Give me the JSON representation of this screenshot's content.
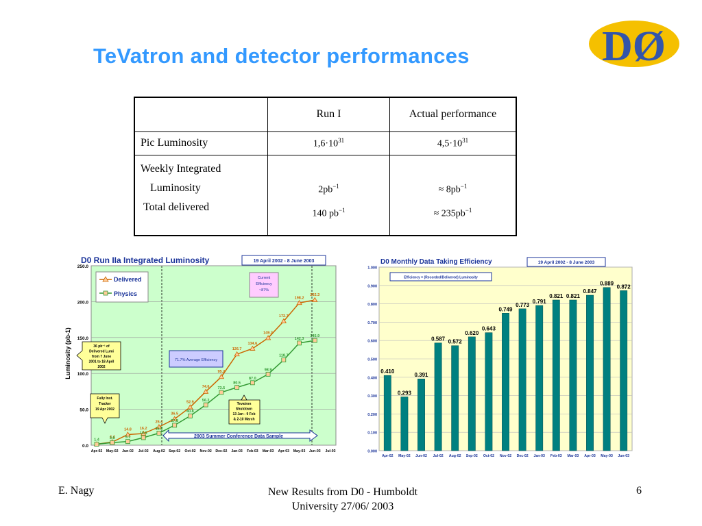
{
  "slide": {
    "title": "TeVatron and detector performances",
    "logo_text": "DØ"
  },
  "table": {
    "headers": [
      "",
      "Run I",
      "Actual performance"
    ],
    "rows": [
      {
        "label": "Pic Luminosity",
        "run1": "1,6·10",
        "run1_exp": "31",
        "actual": "4,5·10",
        "actual_exp": "31"
      }
    ],
    "weekly_label": "Weekly Integrated",
    "luminosity_label": "Luminosity",
    "total_label": "Total delivered",
    "weekly_run1": "2pb",
    "weekly_run1_exp": "−1",
    "weekly_actual": "≈ 8pb",
    "weekly_actual_exp": "−1",
    "total_run1": "140 pb",
    "total_run1_exp": "−1",
    "total_actual": "≈ 235pb",
    "total_actual_exp": "−1"
  },
  "lum_chart": {
    "title": "D0 Run IIa Integrated Luminosity",
    "date_range": "19 April 2002 - 8 June 2003",
    "legend_delivered": "Delivered",
    "legend_physics": "Physics",
    "current_eff_1": "Current",
    "current_eff_2": "Efficiency",
    "current_eff_3": "~87%",
    "avg_eff": "71.7% Average Efficiency",
    "note1": [
      "36 pb⁻¹ of",
      "Delivered Lumi",
      "from 7 June",
      "2001 to 18 April",
      "2002"
    ],
    "note2": [
      "Fully Inst.",
      "Tracker",
      "19 Apr 2002"
    ],
    "note3": [
      "Tevatron",
      "Shutdown",
      "13 Jan - 9 Feb",
      "& 2-10 March"
    ],
    "arrow_label": "2003 Summer Conference Data Sample",
    "colors": {
      "plot_bg": "#ccffcc",
      "delivered": "#cc6600",
      "physics": "#339933",
      "marker_fill": "#ffcc99"
    }
  },
  "eff_chart": {
    "title": "D0 Monthly Data Taking Efficiency",
    "date_range": "19 April 2002 - 8 June 2003",
    "formula": "Efficiency = (Recorded/Delivered) Luminosity",
    "colors": {
      "bar": "#008080",
      "plot_bg": "#ffffcc"
    }
  },
  "chart_data": [
    {
      "type": "line",
      "title": "D0 Run IIa Integrated Luminosity",
      "xlabel": "",
      "ylabel": "Luminosity (pb-1)",
      "ylim": [
        0,
        250
      ],
      "yticks": [
        "0.0",
        "50.0",
        "100.0",
        "150.0",
        "200.0",
        "250.0"
      ],
      "categories": [
        "Apr-02",
        "May-02",
        "Jun-02",
        "Jul-02",
        "Aug-02",
        "Sep-02",
        "Oct-02",
        "Nov-02",
        "Dec-02",
        "Jan-03",
        "Feb-03",
        "Mar-03",
        "Apr-03",
        "May-03",
        "Jun-03",
        "Jul-03"
      ],
      "series": [
        {
          "name": "Delivered",
          "x": [
            0,
            1,
            2,
            3,
            4,
            5,
            6,
            7,
            8,
            9,
            10,
            11,
            12,
            13,
            14
          ],
          "values": [
            1.4,
            4.4,
            14.8,
            16.2,
            25.4,
            36.5,
            52.9,
            74.6,
            95.2,
            126.7,
            134.6,
            149.3,
            172.7,
            198.2,
            202.3
          ]
        },
        {
          "name": "Physics",
          "x": [
            0,
            1,
            2,
            3,
            4,
            5,
            6,
            7,
            8,
            9,
            10,
            11,
            12,
            13,
            14
          ],
          "values": [
            1.4,
            3.6,
            5.1,
            10.5,
            16.8,
            27.8,
            40.8,
            56.2,
            73.5,
            80.5,
            87.0,
            98.9,
            118.7,
            142.3,
            145.9
          ]
        }
      ],
      "point_labels": {
        "Delivered": [
          "",
          "4.4",
          "14.8",
          "16.2",
          "25.4",
          "36.5",
          "52.9",
          "74.6",
          "95.2",
          "126.7",
          "134.6",
          "149.3",
          "172.7",
          "198.2",
          "202.3"
        ],
        "Physics": [
          "1.4",
          "3.6",
          "5.1",
          "10.5",
          "16.8",
          "27.8",
          "40.8",
          "56.2",
          "73.5",
          "80.5",
          "87.0",
          "98.9",
          "118.7",
          "142.3",
          "145.9"
        ]
      }
    },
    {
      "type": "bar",
      "title": "D0 Monthly Data Taking Efficiency",
      "xlabel": "",
      "ylabel": "",
      "ylim": [
        0,
        1.0
      ],
      "yticks": [
        "0.000",
        "0.100",
        "0.200",
        "0.300",
        "0.400",
        "0.500",
        "0.600",
        "0.700",
        "0.800",
        "0.900",
        "1.000"
      ],
      "categories": [
        "Apr-02",
        "May-02",
        "Jun-02",
        "Jul-02",
        "Aug-02",
        "Sep-02",
        "Oct-02",
        "Nov-02",
        "Dec-02",
        "Jan-03",
        "Feb-03",
        "Mar-03",
        "Apr-03",
        "May-03",
        "Jun-03"
      ],
      "values": [
        0.41,
        0.293,
        0.391,
        0.587,
        0.572,
        0.62,
        0.643,
        0.749,
        0.773,
        0.791,
        0.821,
        0.821,
        0.847,
        0.889,
        0.872
      ],
      "labels": [
        "0.410",
        "0.293",
        "0.391",
        "0.587",
        "0.572",
        "0.620",
        "0.643",
        "0.749",
        "0.773",
        "0.791",
        "0.821",
        "0.821",
        "0.847",
        "0.889",
        "0.872"
      ]
    }
  ],
  "footer": {
    "author": "E. Nagy",
    "center_line1": "New Results from D0 - Humboldt",
    "center_line2": "University  27/06/ 2003",
    "page": "6"
  }
}
